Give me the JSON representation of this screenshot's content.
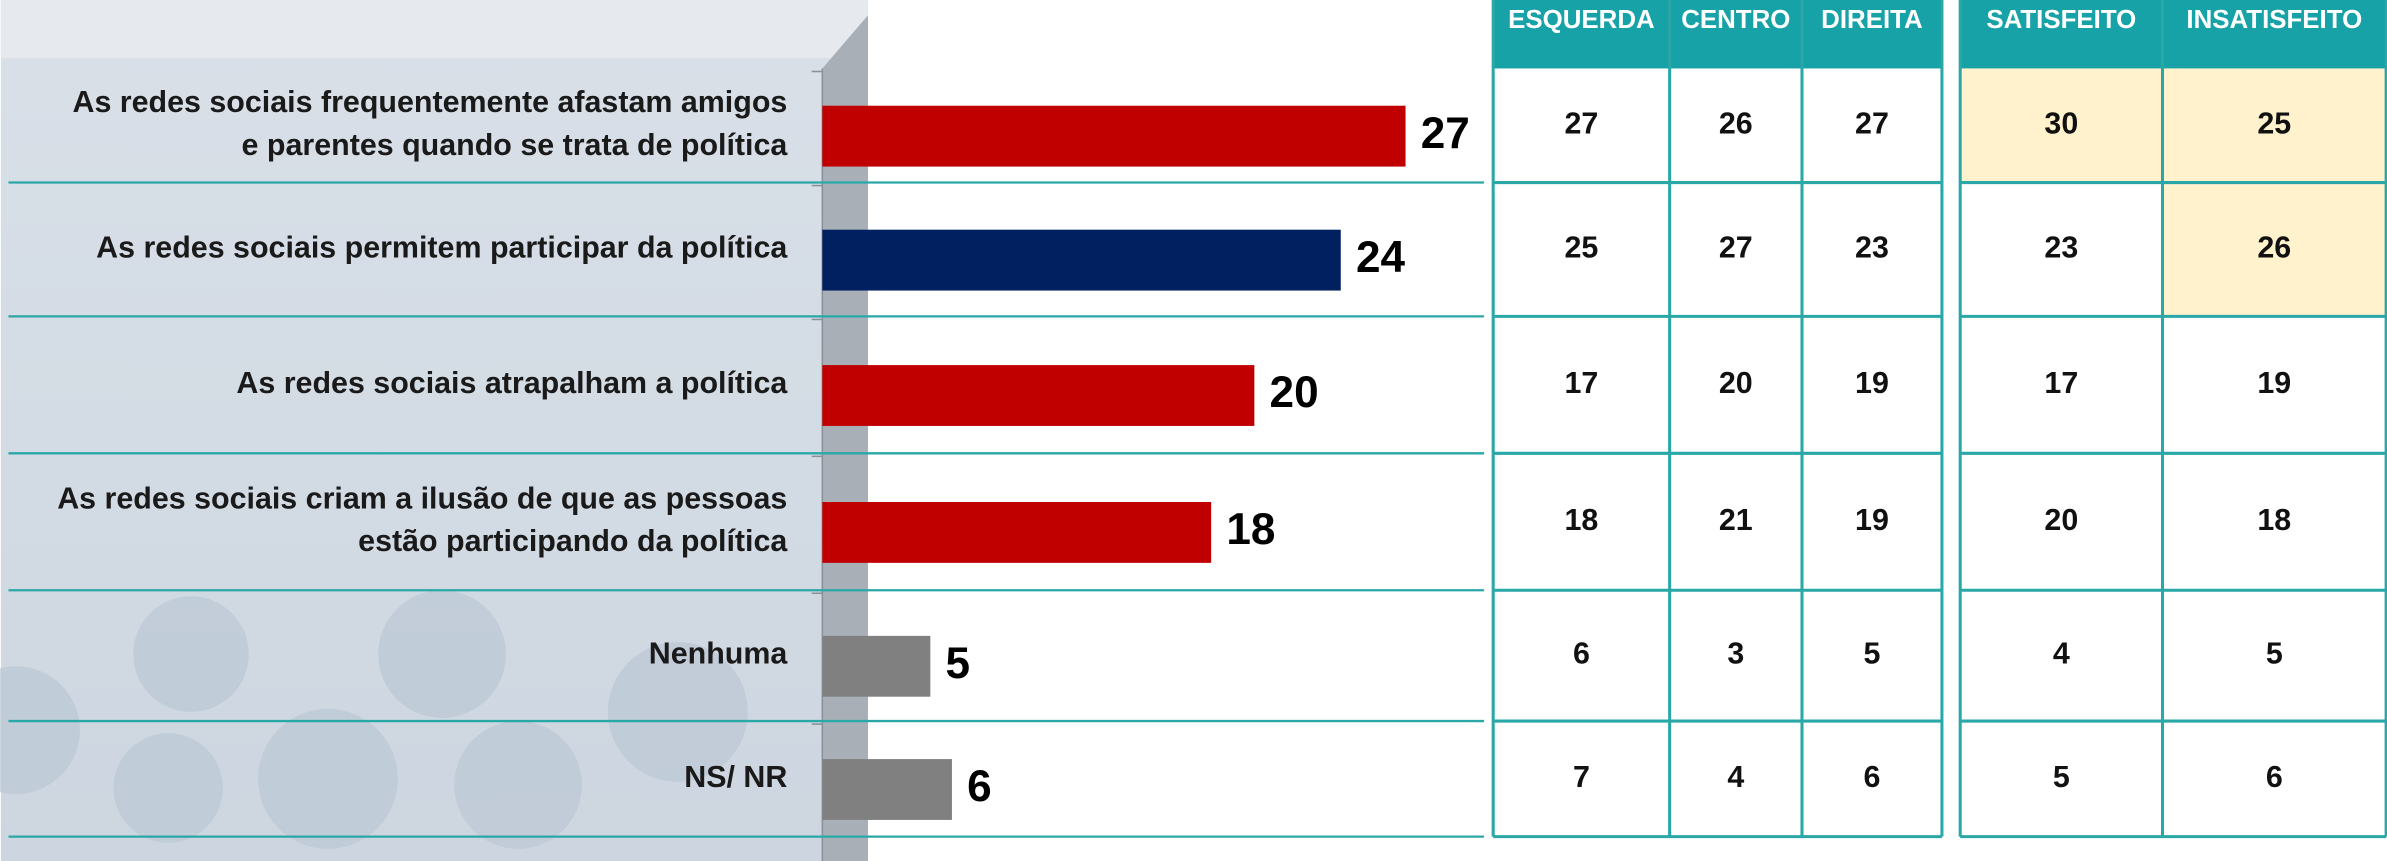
{
  "chart_data": {
    "type": "hbar",
    "categories": [
      "As redes sociais frequentemente afastam amigos\ne parentes quando se trata de política",
      "As redes sociais permitem participar da política",
      "As redes sociais atrapalham a política",
      "As redes sociais criam a ilusão de que as pessoas\nestão participando da política",
      "Nenhuma",
      "NS/ NR"
    ],
    "values": [
      27,
      24,
      20,
      18,
      5,
      6
    ],
    "colors": [
      "#c00000",
      "#002060",
      "#c00000",
      "#c00000",
      "#808080",
      "#808080"
    ],
    "xlim": [
      0,
      30
    ]
  },
  "table": {
    "groups": [
      [
        "ESQUERDA",
        "CENTRO",
        "DIREITA"
      ],
      [
        "SATISFEITO",
        "INSATISFEITO"
      ]
    ],
    "rows": [
      [
        "27",
        "26",
        "27",
        "30",
        "25"
      ],
      [
        "25",
        "27",
        "23",
        "23",
        "26"
      ],
      [
        "17",
        "20",
        "19",
        "17",
        "19"
      ],
      [
        "18",
        "21",
        "19",
        "20",
        "18"
      ],
      [
        "6",
        "3",
        "5",
        "4",
        "5"
      ],
      [
        "7",
        "4",
        "6",
        "5",
        "6"
      ]
    ],
    "highlighted": [
      [
        0,
        3
      ],
      [
        0,
        4
      ],
      [
        1,
        4
      ]
    ]
  }
}
